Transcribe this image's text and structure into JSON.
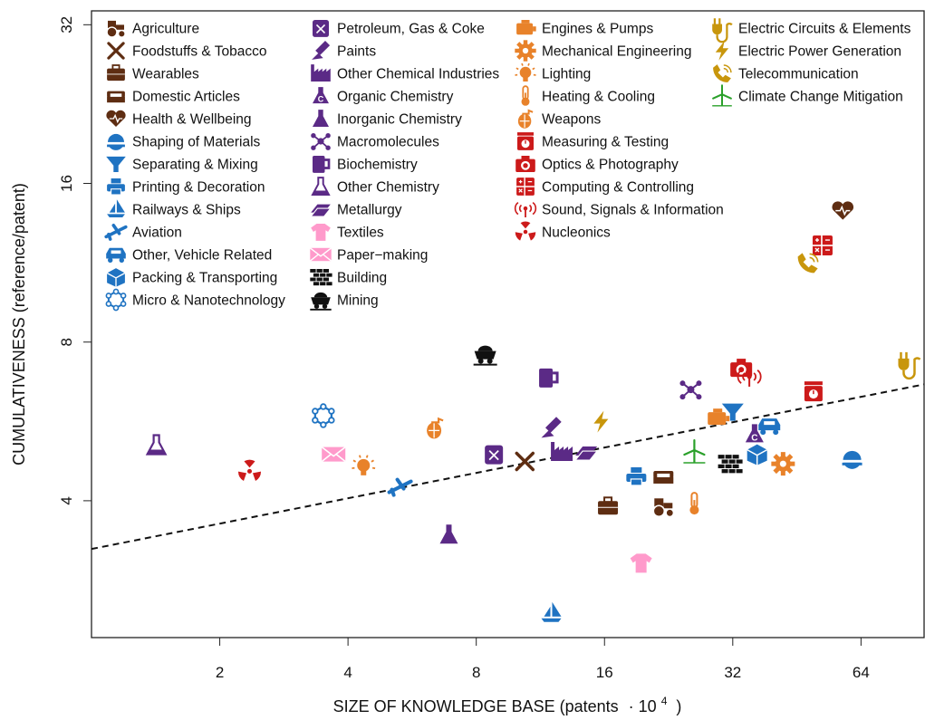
{
  "chart_data": {
    "type": "scatter",
    "xlabel": "SIZE OF KNOWLEDGE BASE (patents",
    "xlabel_unit": "· 10",
    "xlabel_exp": "4",
    "xlabel_close": ")",
    "ylabel": "CUMULATIVENESS (reference/patent)",
    "x_scale": "log2",
    "y_scale": "log2",
    "xlim": [
      1.0,
      90
    ],
    "ylim": [
      2.2,
      34
    ],
    "x_ticks": [
      2,
      4,
      8,
      16,
      32,
      64
    ],
    "x_tick_labels": [
      "2",
      "4",
      "8",
      "16",
      "32",
      "64"
    ],
    "y_ticks": [
      4,
      8,
      16,
      32
    ],
    "y_tick_labels": [
      "4",
      "8",
      "16",
      "32"
    ],
    "trend_line": {
      "style": "dashed",
      "points": [
        [
          1.0,
          3.24
        ],
        [
          90,
          6.65
        ]
      ]
    },
    "colors": {
      "brown": "#5e2d12",
      "purple": "#5b2a86",
      "orange": "#e8822a",
      "red": "#cc1a1a",
      "gold": "#c8960c",
      "green": "#2aa02a",
      "blue": "#1f73c2",
      "pink": "#ff9acb",
      "black": "#111111"
    },
    "legend": "top-left",
    "points": [
      {
        "name": "Agriculture",
        "icon": "tractor-icon",
        "color": "#5e2d12",
        "x": 22,
        "y": 3.9
      },
      {
        "name": "Foodstuffs & Tobacco",
        "icon": "utensils-icon",
        "color": "#5e2d12",
        "x": 10.4,
        "y": 4.75
      },
      {
        "name": "Wearables",
        "icon": "briefcase-icon",
        "color": "#5e2d12",
        "x": 16.3,
        "y": 3.9
      },
      {
        "name": "Domestic Articles",
        "icon": "sofa-icon",
        "color": "#5e2d12",
        "x": 22,
        "y": 4.45
      },
      {
        "name": "Health & Wellbeing",
        "icon": "heart-icon",
        "color": "#5e2d12",
        "x": 58,
        "y": 14.2
      },
      {
        "name": "Shaping of Materials",
        "icon": "saw-blade-icon",
        "color": "#1f73c2",
        "x": 61,
        "y": 4.8
      },
      {
        "name": "Separating & Mixing",
        "icon": "funnel-icon",
        "color": "#1f73c2",
        "x": 32,
        "y": 5.9
      },
      {
        "name": "Printing & Decoration",
        "icon": "printer-icon",
        "color": "#1f73c2",
        "x": 19,
        "y": 4.45
      },
      {
        "name": "Railways & Ships",
        "icon": "sailboat-icon",
        "color": "#1f73c2",
        "x": 12,
        "y": 2.45
      },
      {
        "name": "Aviation",
        "icon": "airplane-icon",
        "color": "#1f73c2",
        "x": 5.3,
        "y": 4.25
      },
      {
        "name": "Other, Vehicle Related",
        "icon": "car-icon",
        "color": "#1f73c2",
        "x": 39,
        "y": 5.55
      },
      {
        "name": "Packing & Transporting",
        "icon": "box-icon",
        "color": "#1f73c2",
        "x": 36.5,
        "y": 4.9
      },
      {
        "name": "Micro & Nanotechnology",
        "icon": "molecule-ring-icon",
        "color": "#1f73c2",
        "x": 3.5,
        "y": 5.8
      },
      {
        "name": "Petroleum, Gas & Coke",
        "icon": "jerrycan-icon",
        "color": "#5b2a86",
        "x": 8.8,
        "y": 4.9
      },
      {
        "name": "Paints",
        "icon": "paintbrush-icon",
        "color": "#5b2a86",
        "x": 12,
        "y": 5.5
      },
      {
        "name": "Other Chemical Industries",
        "icon": "factory-icon",
        "color": "#5b2a86",
        "x": 12.7,
        "y": 4.95
      },
      {
        "name": "Organic Chemistry",
        "icon": "flask-c-icon",
        "color": "#5b2a86",
        "x": 36,
        "y": 5.35
      },
      {
        "name": "Inorganic Chemistry",
        "icon": "flask-icon",
        "color": "#5b2a86",
        "x": 6.9,
        "y": 3.45
      },
      {
        "name": "Macromolecules",
        "icon": "network-icon",
        "color": "#5b2a86",
        "x": 25.5,
        "y": 6.5
      },
      {
        "name": "Biochemistry",
        "icon": "mug-icon",
        "color": "#5b2a86",
        "x": 11.8,
        "y": 6.85
      },
      {
        "name": "Other Chemistry",
        "icon": "flask-outline-icon",
        "color": "#5b2a86",
        "x": 1.42,
        "y": 5.1
      },
      {
        "name": "Metallurgy",
        "icon": "ingot-icon",
        "color": "#5b2a86",
        "x": 14.5,
        "y": 4.95
      },
      {
        "name": "Textiles",
        "icon": "tshirt-icon",
        "color": "#ff9acb",
        "x": 19.5,
        "y": 3.05
      },
      {
        "name": "Paper-making",
        "icon": "envelope-icon",
        "color": "#ff9acb",
        "x": 3.7,
        "y": 4.9
      },
      {
        "name": "Building",
        "icon": "bricks-icon",
        "color": "#111111",
        "x": 31.5,
        "y": 4.7
      },
      {
        "name": "Mining",
        "icon": "mine-cart-icon",
        "color": "#111111",
        "x": 8.4,
        "y": 7.6
      },
      {
        "name": "Engines & Pumps",
        "icon": "engine-icon",
        "color": "#e8822a",
        "x": 29.5,
        "y": 5.75
      },
      {
        "name": "Mechanical Engineering",
        "icon": "gear-icon",
        "color": "#e8822a",
        "x": 42,
        "y": 4.7
      },
      {
        "name": "Lighting",
        "icon": "bulb-icon",
        "color": "#e8822a",
        "x": 4.35,
        "y": 4.65
      },
      {
        "name": "Heating & Cooling",
        "icon": "thermometer-icon",
        "color": "#e8822a",
        "x": 26,
        "y": 3.95
      },
      {
        "name": "Weapons",
        "icon": "grenade-icon",
        "color": "#e8822a",
        "x": 6.4,
        "y": 5.5
      },
      {
        "name": "Measuring & Testing",
        "icon": "scale-icon",
        "color": "#cc1a1a",
        "x": 49.5,
        "y": 6.45
      },
      {
        "name": "Optics & Photography",
        "icon": "camera-icon",
        "color": "#cc1a1a",
        "x": 33.5,
        "y": 7.15
      },
      {
        "name": "Computing & Controlling",
        "icon": "calculator-icon",
        "color": "#cc1a1a",
        "x": 52,
        "y": 12.2
      },
      {
        "name": "Sound, Signals & Information",
        "icon": "broadcast-icon",
        "color": "#cc1a1a",
        "x": 35,
        "y": 6.85
      },
      {
        "name": "Nucleonics",
        "icon": "radiation-icon",
        "color": "#cc1a1a",
        "x": 2.35,
        "y": 4.55
      },
      {
        "name": "Electric Circuits & Elements",
        "icon": "plug-icon",
        "color": "#c8960c",
        "x": 83,
        "y": 7.3
      },
      {
        "name": "Electric Power Generation",
        "icon": "lightning-icon",
        "color": "#c8960c",
        "x": 15.7,
        "y": 5.65
      },
      {
        "name": "Telecommunication",
        "icon": "phone-icon",
        "color": "#c8960c",
        "x": 48,
        "y": 11.3
      },
      {
        "name": "Climate Change Mitigation",
        "icon": "wind-turbine-icon",
        "color": "#2aa02a",
        "x": 26,
        "y": 4.95
      }
    ],
    "legend_columns": [
      [
        "Agriculture",
        "Foodstuffs & Tobacco",
        "Wearables",
        "Domestic Articles",
        "Health & Wellbeing",
        "Shaping of Materials",
        "Separating & Mixing",
        "Printing & Decoration",
        "Railways & Ships",
        "Aviation",
        "Other, Vehicle Related",
        "Packing & Transporting",
        "Micro & Nanotechnology"
      ],
      [
        "Petroleum, Gas & Coke",
        "Paints",
        "Other Chemical Industries",
        "Organic Chemistry",
        "Inorganic Chemistry",
        "Macromolecules",
        "Biochemistry",
        "Other Chemistry",
        "Metallurgy",
        "Textiles",
        "Paper−making",
        "Building",
        "Mining"
      ],
      [
        "Engines & Pumps",
        "Mechanical Engineering",
        "Lighting",
        "Heating & Cooling",
        "Weapons",
        "Measuring & Testing",
        "Optics & Photography",
        "Computing & Controlling",
        "Sound, Signals & Information",
        "Nucleonics"
      ],
      [
        "Electric Circuits & Elements",
        "Electric Power Generation",
        "Telecommunication",
        "Climate Change Mitigation"
      ]
    ]
  }
}
